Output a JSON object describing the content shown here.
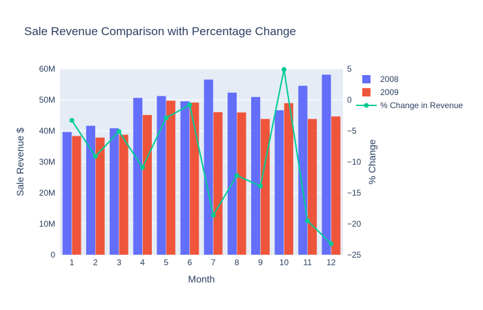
{
  "chart_data": {
    "type": "bar",
    "title": "Sale Revenue Comparison with Percentage Change",
    "xlabel": "Month",
    "ylabel": "Sale Revenue $",
    "y2label": "% Change",
    "categories": [
      "1",
      "2",
      "3",
      "4",
      "5",
      "6",
      "7",
      "8",
      "9",
      "10",
      "11",
      "12"
    ],
    "ylim": [
      0,
      60000000
    ],
    "y_ticks": [
      {
        "value": 0,
        "label": "0"
      },
      {
        "value": 10000000,
        "label": "10M"
      },
      {
        "value": 20000000,
        "label": "20M"
      },
      {
        "value": 30000000,
        "label": "30M"
      },
      {
        "value": 40000000,
        "label": "40M"
      },
      {
        "value": 50000000,
        "label": "50M"
      },
      {
        "value": 60000000,
        "label": "60M"
      }
    ],
    "y2lim": [
      -25,
      5
    ],
    "y2_ticks": [
      {
        "value": 5,
        "label": "5"
      },
      {
        "value": 0,
        "label": "0"
      },
      {
        "value": -5,
        "label": "−5"
      },
      {
        "value": -10,
        "label": "−10"
      },
      {
        "value": -15,
        "label": "−15"
      },
      {
        "value": -20,
        "label": "−20"
      },
      {
        "value": -25,
        "label": "−25"
      }
    ],
    "series": [
      {
        "name": "2008",
        "type": "bar",
        "color": "#636efa",
        "values": [
          39700000,
          41700000,
          40900000,
          50700000,
          51300000,
          49600000,
          56600000,
          52400000,
          51000000,
          46700000,
          54600000,
          58200000
        ]
      },
      {
        "name": "2009",
        "type": "bar",
        "color": "#ef553b",
        "values": [
          38400000,
          37900000,
          38800000,
          45200000,
          49800000,
          49200000,
          46100000,
          46000000,
          43900000,
          49000000,
          43900000,
          44700000
        ]
      },
      {
        "name": "% Change in Revenue",
        "type": "line",
        "axis": "y2",
        "color": "#00cc96",
        "values": [
          -3.3,
          -9.1,
          -5.1,
          -10.9,
          -2.9,
          -0.8,
          -18.6,
          -12.2,
          -13.9,
          4.9,
          -19.5,
          -23.2
        ]
      }
    ],
    "grid": true,
    "legend": "top-right"
  }
}
